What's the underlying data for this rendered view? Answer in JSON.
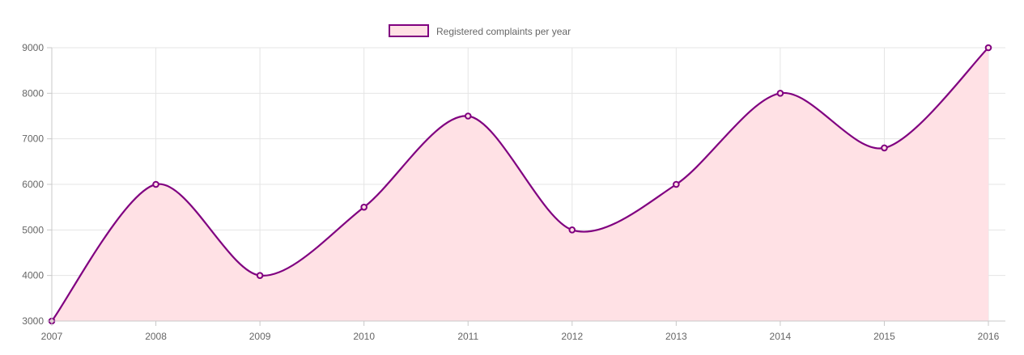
{
  "colors": {
    "line": "#800080",
    "fill": "#ffe1e5",
    "grid": "#e5e5e5",
    "axis": "#c8c8c8",
    "text": "#666666"
  },
  "chart_data": {
    "type": "area",
    "x": [
      "2007",
      "2008",
      "2009",
      "2010",
      "2011",
      "2012",
      "2013",
      "2014",
      "2015",
      "2016"
    ],
    "series": [
      {
        "name": "Registered complaints per year",
        "values": [
          3000,
          6000,
          4000,
          5500,
          7500,
          5000,
          6000,
          8000,
          6800,
          9000
        ]
      }
    ],
    "ylim": [
      3000,
      9000
    ],
    "yticks": [
      3000,
      4000,
      5000,
      6000,
      7000,
      8000,
      9000
    ],
    "grid": true,
    "smooth": true,
    "legend_position": "top-center"
  }
}
